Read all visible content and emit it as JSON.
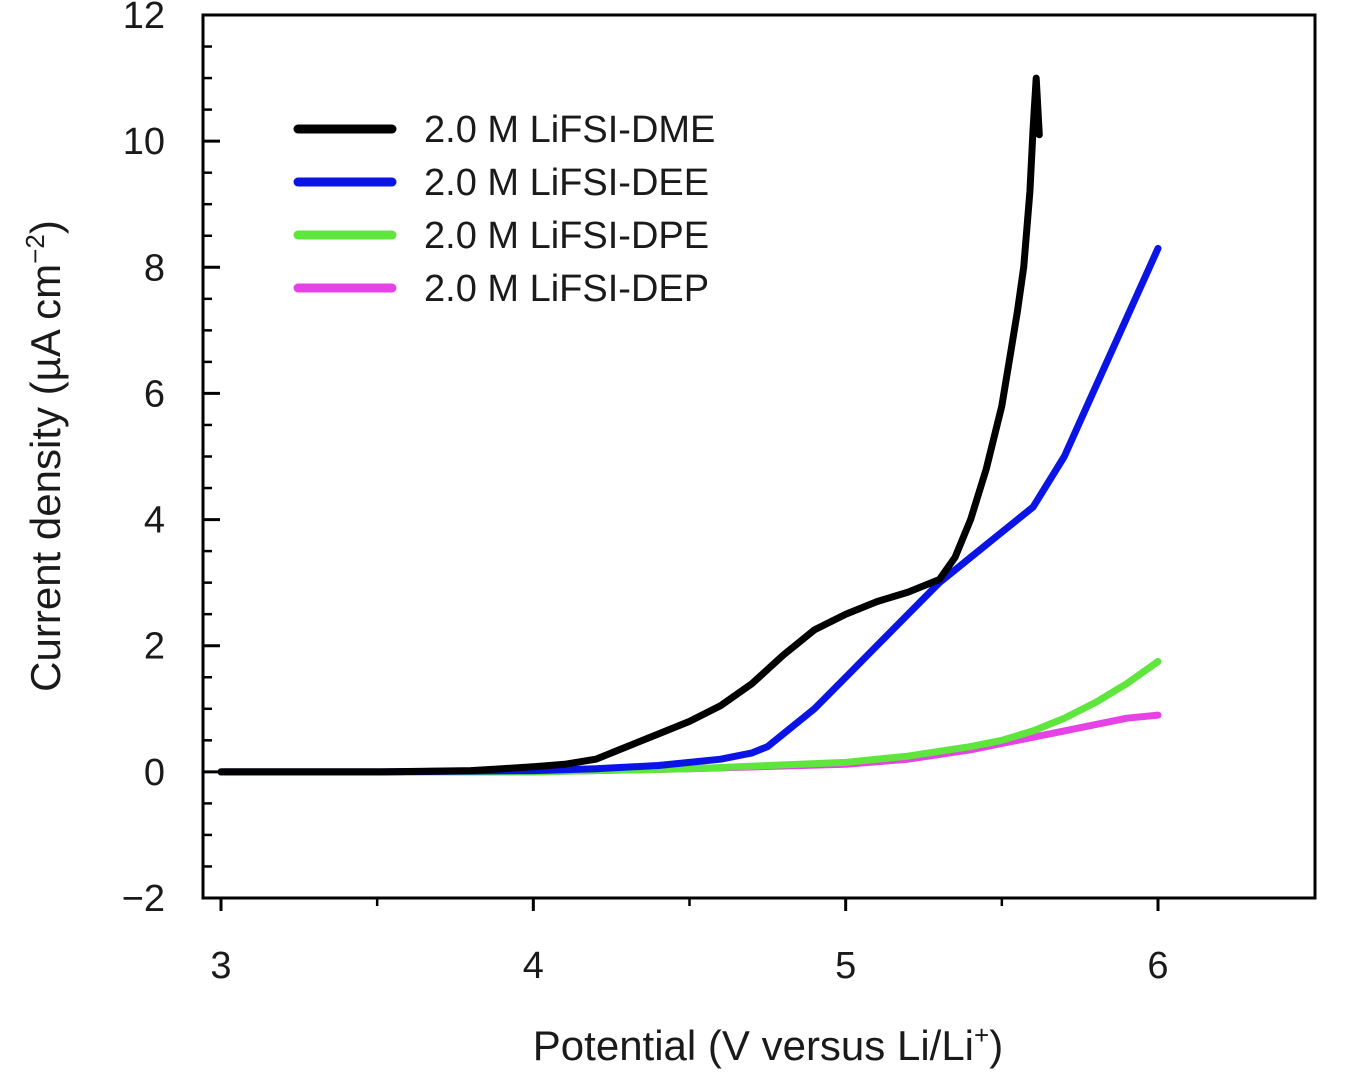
{
  "chart_data": {
    "type": "line",
    "title": "",
    "xlabel": "Potential (V versus Li/Li",
    "xlabel_sup": "+",
    "xlabel_end": ")",
    "ylabel": "Current density (µA cm",
    "ylabel_sup": "−2",
    "ylabel_end": ")",
    "xlim": [
      3,
      6.5
    ],
    "ylim": [
      -2,
      12
    ],
    "xticks": [
      3,
      4,
      5,
      6
    ],
    "xtick_labels": [
      "3",
      "4",
      "5",
      "6"
    ],
    "yticks": [
      -2,
      0,
      2,
      4,
      6,
      8,
      10,
      12
    ],
    "ytick_labels": [
      "−2",
      "0",
      "2",
      "4",
      "6",
      "8",
      "10",
      "12"
    ],
    "grid": false,
    "legend_position": "top-left",
    "series": [
      {
        "name": "2.0 M LiFSI-DME",
        "color": "#000000",
        "x": [
          3.0,
          3.5,
          3.8,
          3.9,
          4.0,
          4.1,
          4.2,
          4.3,
          4.4,
          4.5,
          4.6,
          4.7,
          4.8,
          4.9,
          5.0,
          5.1,
          5.2,
          5.3,
          5.35,
          5.4,
          5.45,
          5.5,
          5.53,
          5.55,
          5.57,
          5.59,
          5.6,
          5.61,
          5.62
        ],
        "y": [
          0.0,
          0.0,
          0.02,
          0.05,
          0.08,
          0.12,
          0.2,
          0.4,
          0.6,
          0.8,
          1.05,
          1.4,
          1.85,
          2.25,
          2.5,
          2.7,
          2.85,
          3.05,
          3.4,
          4.0,
          4.8,
          5.8,
          6.7,
          7.3,
          8.0,
          9.2,
          10.2,
          11.0,
          10.1
        ]
      },
      {
        "name": "2.0 M LiFSI-DEE",
        "color": "#0a14e6",
        "x": [
          3.0,
          3.5,
          4.0,
          4.2,
          4.4,
          4.6,
          4.7,
          4.75,
          4.8,
          4.9,
          5.0,
          5.1,
          5.2,
          5.3,
          5.4,
          5.5,
          5.6,
          5.7,
          5.8,
          5.9,
          6.0
        ],
        "y": [
          0.0,
          0.0,
          0.02,
          0.05,
          0.1,
          0.2,
          0.3,
          0.4,
          0.6,
          1.0,
          1.5,
          2.0,
          2.5,
          3.0,
          3.4,
          3.8,
          4.2,
          5.0,
          6.1,
          7.2,
          8.3
        ]
      },
      {
        "name": "2.0 M LiFSI-DPE",
        "color": "#5ee63c",
        "x": [
          3.0,
          3.5,
          4.0,
          4.5,
          5.0,
          5.2,
          5.4,
          5.5,
          5.6,
          5.7,
          5.8,
          5.9,
          6.0
        ],
        "y": [
          0.0,
          0.0,
          0.0,
          0.05,
          0.15,
          0.25,
          0.4,
          0.5,
          0.65,
          0.85,
          1.1,
          1.4,
          1.75
        ]
      },
      {
        "name": "2.0 M LiFSI-DEP",
        "color": "#e642e6",
        "x": [
          3.0,
          3.5,
          4.0,
          4.5,
          5.0,
          5.2,
          5.4,
          5.5,
          5.6,
          5.7,
          5.8,
          5.9,
          6.0
        ],
        "y": [
          0.0,
          0.0,
          0.0,
          0.05,
          0.12,
          0.2,
          0.35,
          0.45,
          0.55,
          0.65,
          0.75,
          0.85,
          0.9
        ]
      }
    ]
  }
}
